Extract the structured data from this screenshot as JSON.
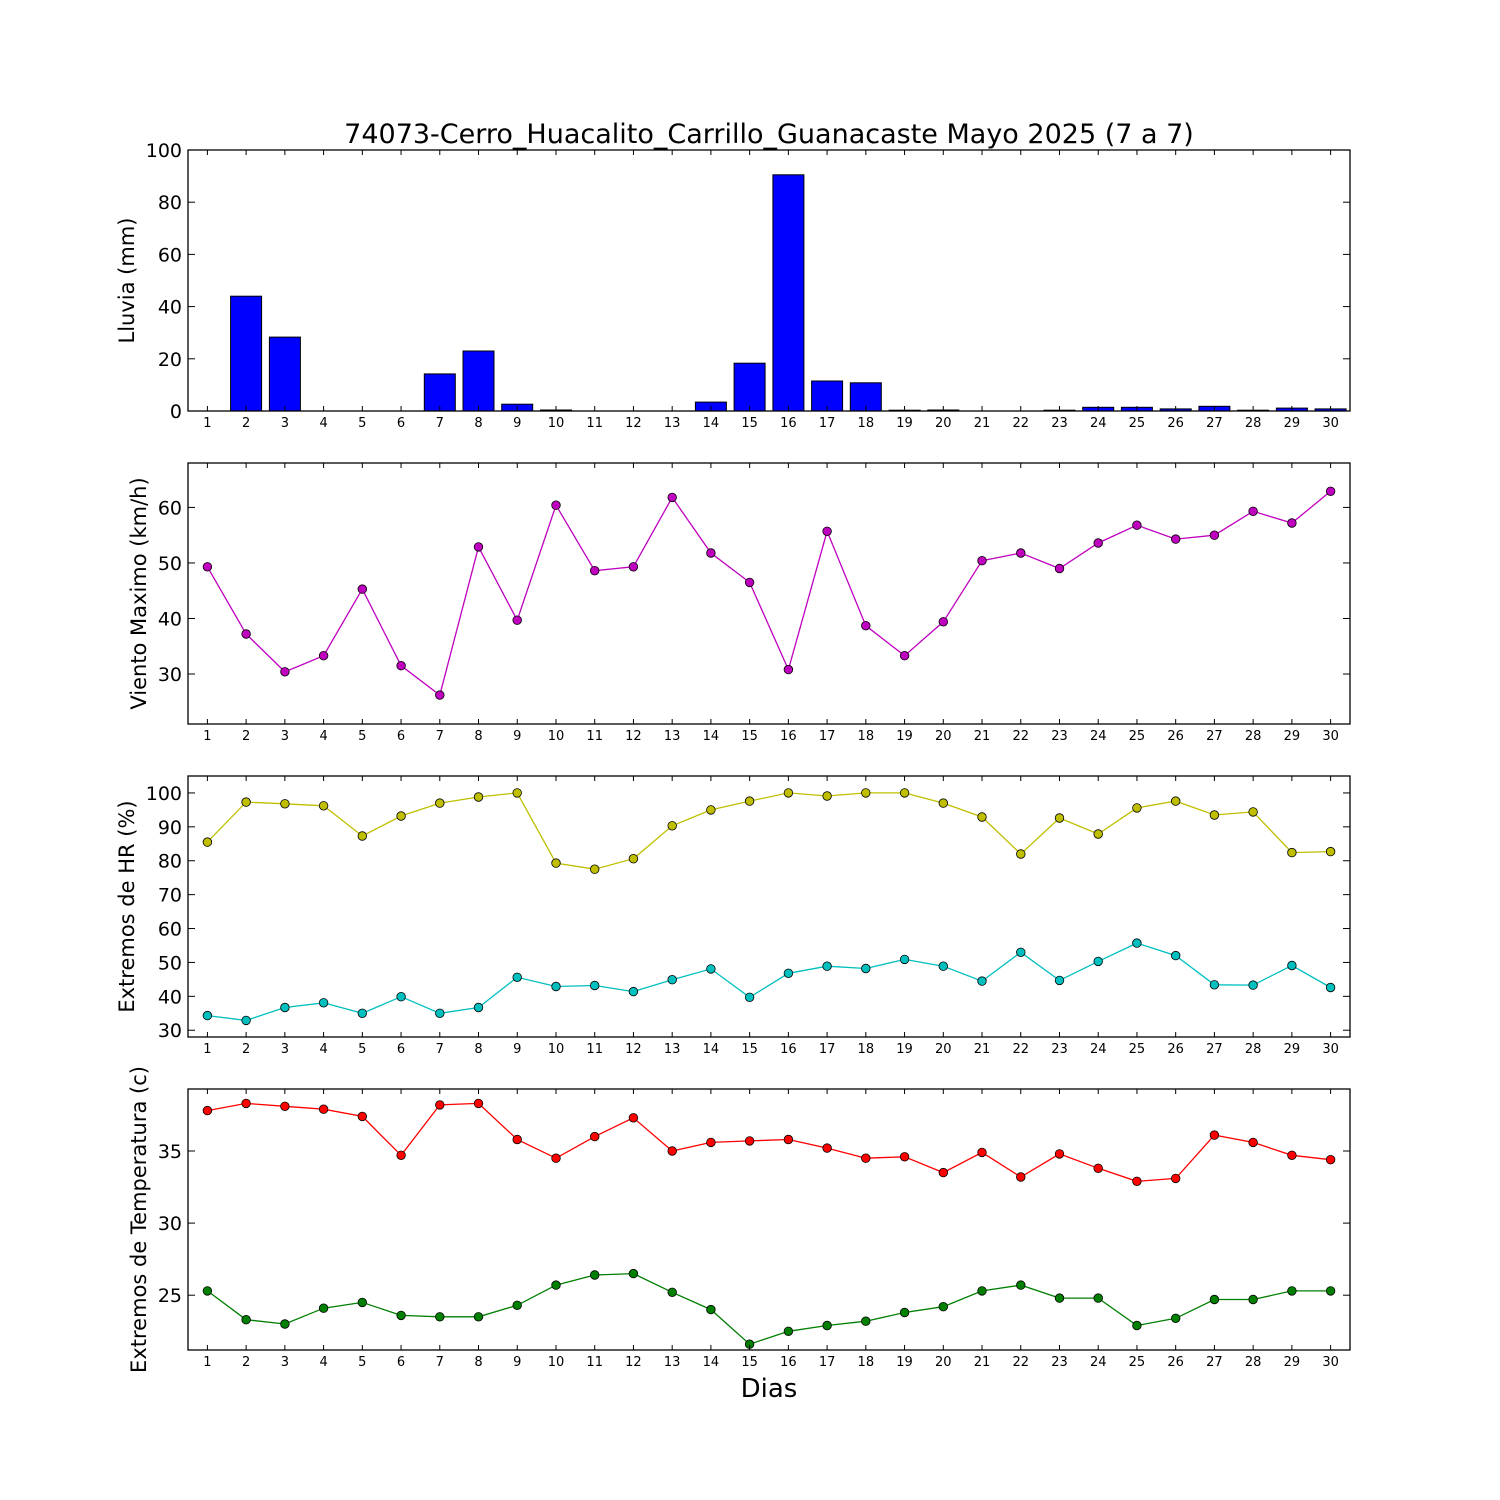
{
  "chart_data": [
    {
      "type": "bar",
      "title": "74073-Cerro_Huacalito_Carrillo_Guanacaste Mayo 2025  (7 a 7)",
      "ylabel": "Lluvia (mm)",
      "xlabel": "",
      "ylim": [
        0,
        100
      ],
      "yticks": [
        0,
        20,
        40,
        60,
        80,
        100
      ],
      "categories": [
        "1",
        "2",
        "3",
        "4",
        "5",
        "6",
        "7",
        "8",
        "9",
        "10",
        "11",
        "12",
        "13",
        "14",
        "15",
        "16",
        "17",
        "18",
        "19",
        "20",
        "21",
        "22",
        "23",
        "24",
        "25",
        "26",
        "27",
        "28",
        "29",
        "30"
      ],
      "series": [
        {
          "color": "#0000ff",
          "values": [
            0,
            44,
            28.3,
            0,
            0,
            0,
            14.2,
            23,
            2.6,
            0.4,
            0,
            0,
            0,
            3.4,
            18.3,
            90.5,
            11.5,
            10.8,
            0.3,
            0.4,
            0,
            0,
            0.3,
            1.4,
            1.4,
            0.8,
            1.8,
            0.3,
            1.1,
            0.8
          ]
        }
      ]
    },
    {
      "type": "line",
      "ylabel": "Viento Maximo (km/h)",
      "xlabel": "",
      "ylim": [
        21,
        68
      ],
      "yticks": [
        30,
        40,
        50,
        60
      ],
      "x": [
        1,
        2,
        3,
        4,
        5,
        6,
        7,
        8,
        9,
        10,
        11,
        12,
        13,
        14,
        15,
        16,
        17,
        18,
        19,
        20,
        21,
        22,
        23,
        24,
        25,
        26,
        27,
        28,
        29,
        30
      ],
      "series": [
        {
          "color": "#bf00bf",
          "values": [
            49.3,
            37.2,
            30.4,
            33.3,
            45.3,
            31.5,
            26.2,
            52.9,
            39.7,
            60.4,
            48.6,
            49.3,
            61.8,
            51.8,
            46.5,
            30.8,
            55.7,
            38.7,
            33.3,
            39.4,
            50.4,
            51.8,
            49,
            53.6,
            56.8,
            54.3,
            55,
            59.3,
            57.2,
            62.9
          ]
        }
      ]
    },
    {
      "type": "line",
      "ylabel": "Extremos de HR (%)",
      "xlabel": "",
      "ylim": [
        28,
        105
      ],
      "yticks": [
        30,
        40,
        50,
        60,
        70,
        80,
        90,
        100
      ],
      "x": [
        1,
        2,
        3,
        4,
        5,
        6,
        7,
        8,
        9,
        10,
        11,
        12,
        13,
        14,
        15,
        16,
        17,
        18,
        19,
        20,
        21,
        22,
        23,
        24,
        25,
        26,
        27,
        28,
        29,
        30
      ],
      "series": [
        {
          "color": "#bfbf00",
          "values": [
            85.5,
            97.3,
            96.8,
            96.2,
            87.3,
            93.2,
            97,
            98.8,
            100,
            79.3,
            77.5,
            80.6,
            90.3,
            95,
            97.6,
            100,
            99.1,
            100,
            100,
            97,
            92.9,
            82,
            92.6,
            87.9,
            95.6,
            97.6,
            93.5,
            94.4,
            82.4,
            82.7
          ]
        },
        {
          "color": "#00bfbf",
          "values": [
            34.3,
            32.9,
            36.7,
            38.1,
            35,
            39.9,
            35,
            36.7,
            45.6,
            42.9,
            43.2,
            41.4,
            44.9,
            48.1,
            39.7,
            46.8,
            48.9,
            48.2,
            50.9,
            48.9,
            44.5,
            53,
            44.7,
            50.3,
            55.7,
            52,
            43.4,
            43.3,
            49.1,
            42.6
          ]
        }
      ]
    },
    {
      "type": "line",
      "ylabel": "Extremos de Temperatura (c)",
      "xlabel": "Dias",
      "ylim": [
        21.2,
        39.3
      ],
      "yticks": [
        25,
        30,
        35
      ],
      "x": [
        1,
        2,
        3,
        4,
        5,
        6,
        7,
        8,
        9,
        10,
        11,
        12,
        13,
        14,
        15,
        16,
        17,
        18,
        19,
        20,
        21,
        22,
        23,
        24,
        25,
        26,
        27,
        28,
        29,
        30
      ],
      "series": [
        {
          "color": "#ff0000",
          "values": [
            37.8,
            38.3,
            38.1,
            37.9,
            37.4,
            34.7,
            38.2,
            38.3,
            35.8,
            34.5,
            36,
            37.3,
            35,
            35.6,
            35.7,
            35.8,
            35.2,
            34.5,
            34.6,
            33.5,
            34.9,
            33.2,
            34.8,
            33.8,
            32.9,
            33.1,
            36.1,
            35.6,
            34.7,
            34.4
          ]
        },
        {
          "color": "#007f00",
          "values": [
            25.3,
            23.3,
            23,
            24.1,
            24.5,
            23.6,
            23.5,
            23.5,
            24.3,
            25.7,
            26.4,
            26.5,
            25.2,
            24,
            21.6,
            22.5,
            22.9,
            23.2,
            23.8,
            24.2,
            25.3,
            25.7,
            24.8,
            24.8,
            22.9,
            23.4,
            24.7,
            24.7,
            25.3,
            25.3
          ]
        }
      ]
    }
  ]
}
